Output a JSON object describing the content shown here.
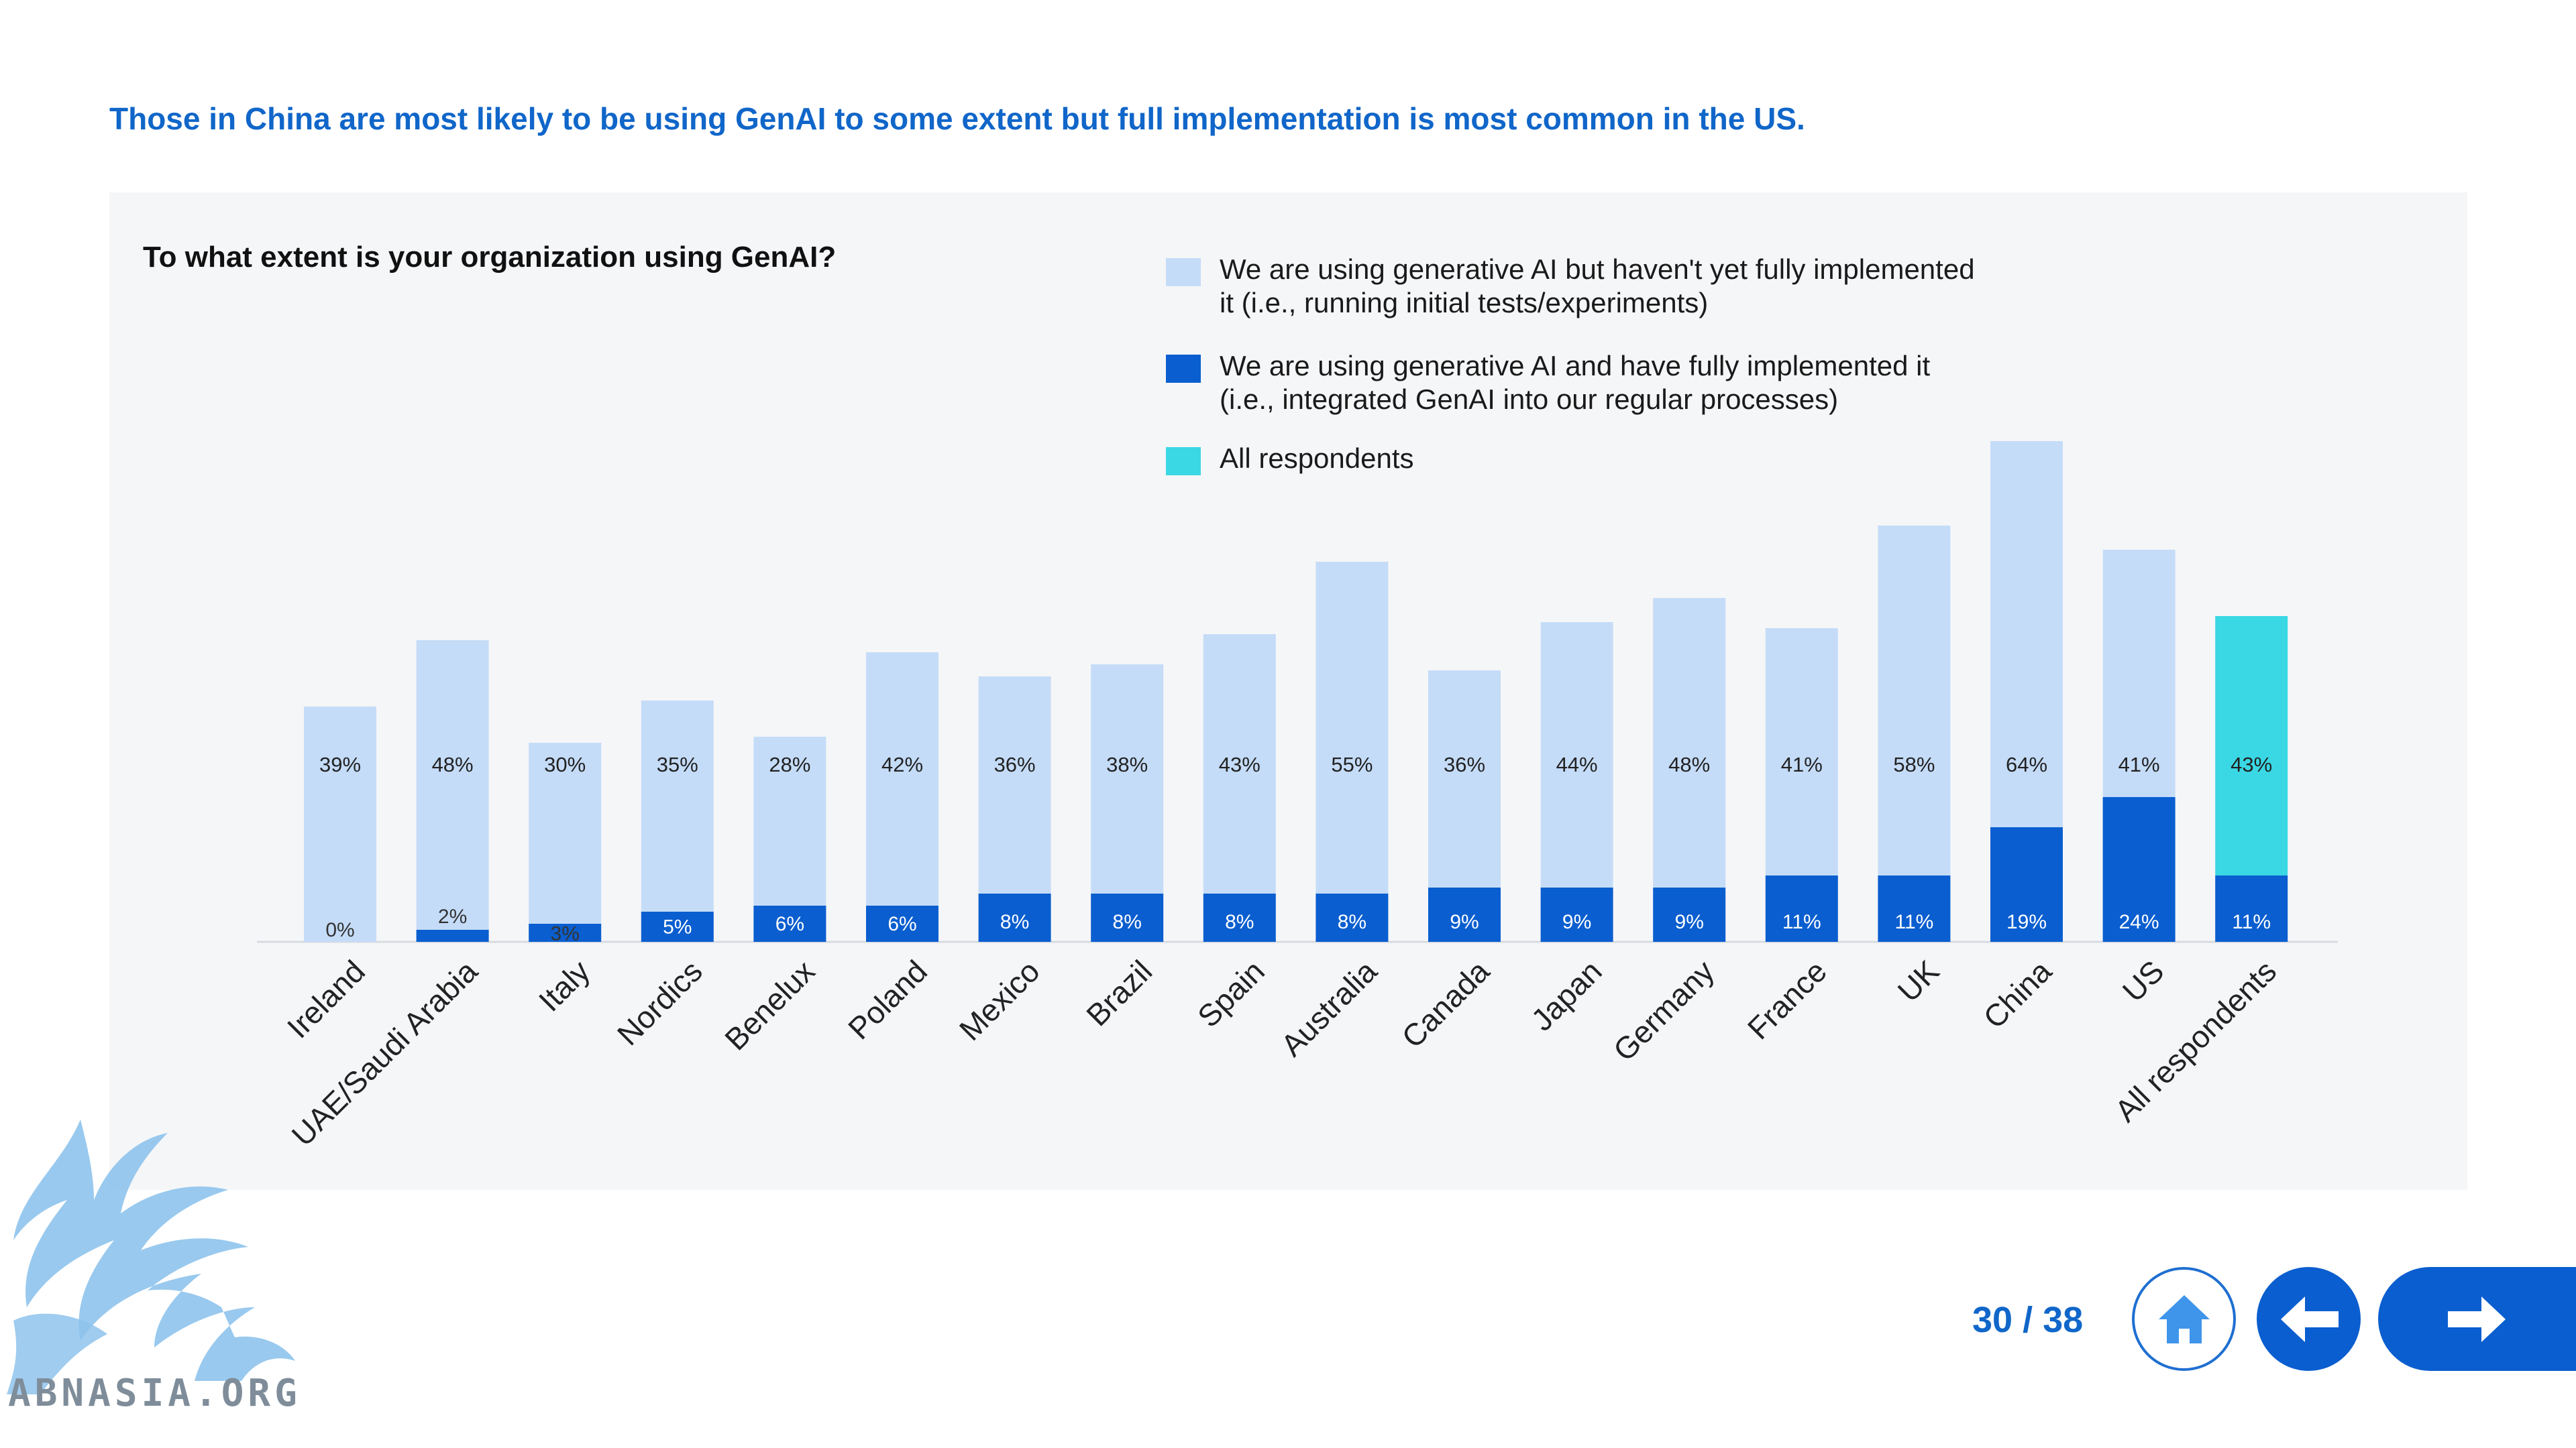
{
  "headline": "Those in China are most likely to be using GenAI to some extent but full implementation is most common in the US.",
  "chart_data": {
    "type": "bar",
    "stacked": true,
    "title": "To what extent is your organization using GenAI?",
    "categories": [
      "Ireland",
      "UAE/Saudi Arabia",
      "Italy",
      "Nordics",
      "Benelux",
      "Poland",
      "Mexico",
      "Brazil",
      "Spain",
      "Australia",
      "Canada",
      "Japan",
      "Germany",
      "France",
      "UK",
      "China",
      "US",
      "All respondents"
    ],
    "series": [
      {
        "name": "We are using generative AI and have fully implemented it (i.e., integrated GenAI into our regular processes)",
        "values": [
          0,
          2,
          3,
          5,
          6,
          6,
          8,
          8,
          8,
          8,
          9,
          9,
          9,
          11,
          11,
          19,
          24,
          11
        ],
        "labels": [
          "0%",
          "2%",
          "3%",
          "5%",
          "6%",
          "6%",
          "8%",
          "8%",
          "8%",
          "8%",
          "9%",
          "9%",
          "9%",
          "11%",
          "11%",
          "19%",
          "24%",
          "11%"
        ],
        "color": "#0a5ecf"
      },
      {
        "name": "We are using generative AI but haven't yet fully implemented it (i.e., running initial tests/experiments)",
        "values": [
          39,
          48,
          30,
          35,
          28,
          42,
          36,
          38,
          43,
          55,
          36,
          44,
          48,
          41,
          58,
          64,
          41,
          43
        ],
        "labels": [
          "39%",
          "48%",
          "30%",
          "35%",
          "28%",
          "42%",
          "36%",
          "38%",
          "43%",
          "55%",
          "36%",
          "44%",
          "48%",
          "41%",
          "58%",
          "64%",
          "41%",
          "43%"
        ],
        "color": "#c5dcf8"
      }
    ],
    "highlight": {
      "category": "All respondents",
      "name": "All respondents",
      "color": "#3ad8e4"
    },
    "grid": false,
    "legend_position": "top-right"
  },
  "legend": {
    "partial": "We are using generative AI but haven't yet fully implemented it (i.e., running initial tests/experiments)",
    "full": "We are using generative AI and have fully implemented it (i.e., integrated GenAI into our regular processes)",
    "all": "All respondents"
  },
  "nav": {
    "page_indicator": "30 / 38",
    "home_icon": "home-icon",
    "back_icon": "arrow-left-icon",
    "next_icon": "arrow-right-icon"
  },
  "watermark": {
    "text": "ABNASIA.ORG",
    "icon": "griffin-logo-icon"
  }
}
